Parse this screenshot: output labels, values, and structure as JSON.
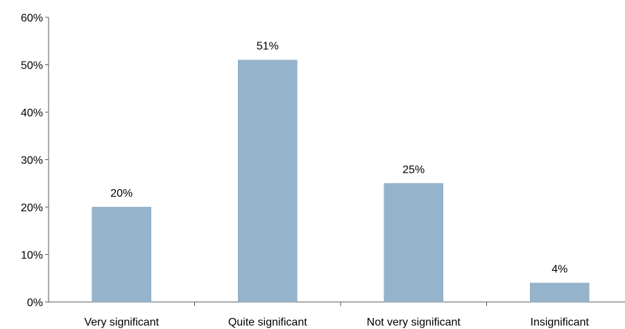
{
  "chart_data": {
    "type": "bar",
    "categories": [
      "Very significant",
      "Quite significant",
      "Not very significant",
      "Insignificant"
    ],
    "values": [
      20,
      51,
      25,
      4
    ],
    "data_labels": [
      "20%",
      "51%",
      "25%",
      "4%"
    ],
    "yticks": [
      "0%",
      "10%",
      "20%",
      "30%",
      "40%",
      "50%",
      "60%"
    ],
    "ylim": [
      0,
      60
    ],
    "grid": false,
    "legend": "none",
    "bar_color": "#95b3cb",
    "bar_edge_color": "#7f9db5",
    "axis_color": "#555555"
  }
}
